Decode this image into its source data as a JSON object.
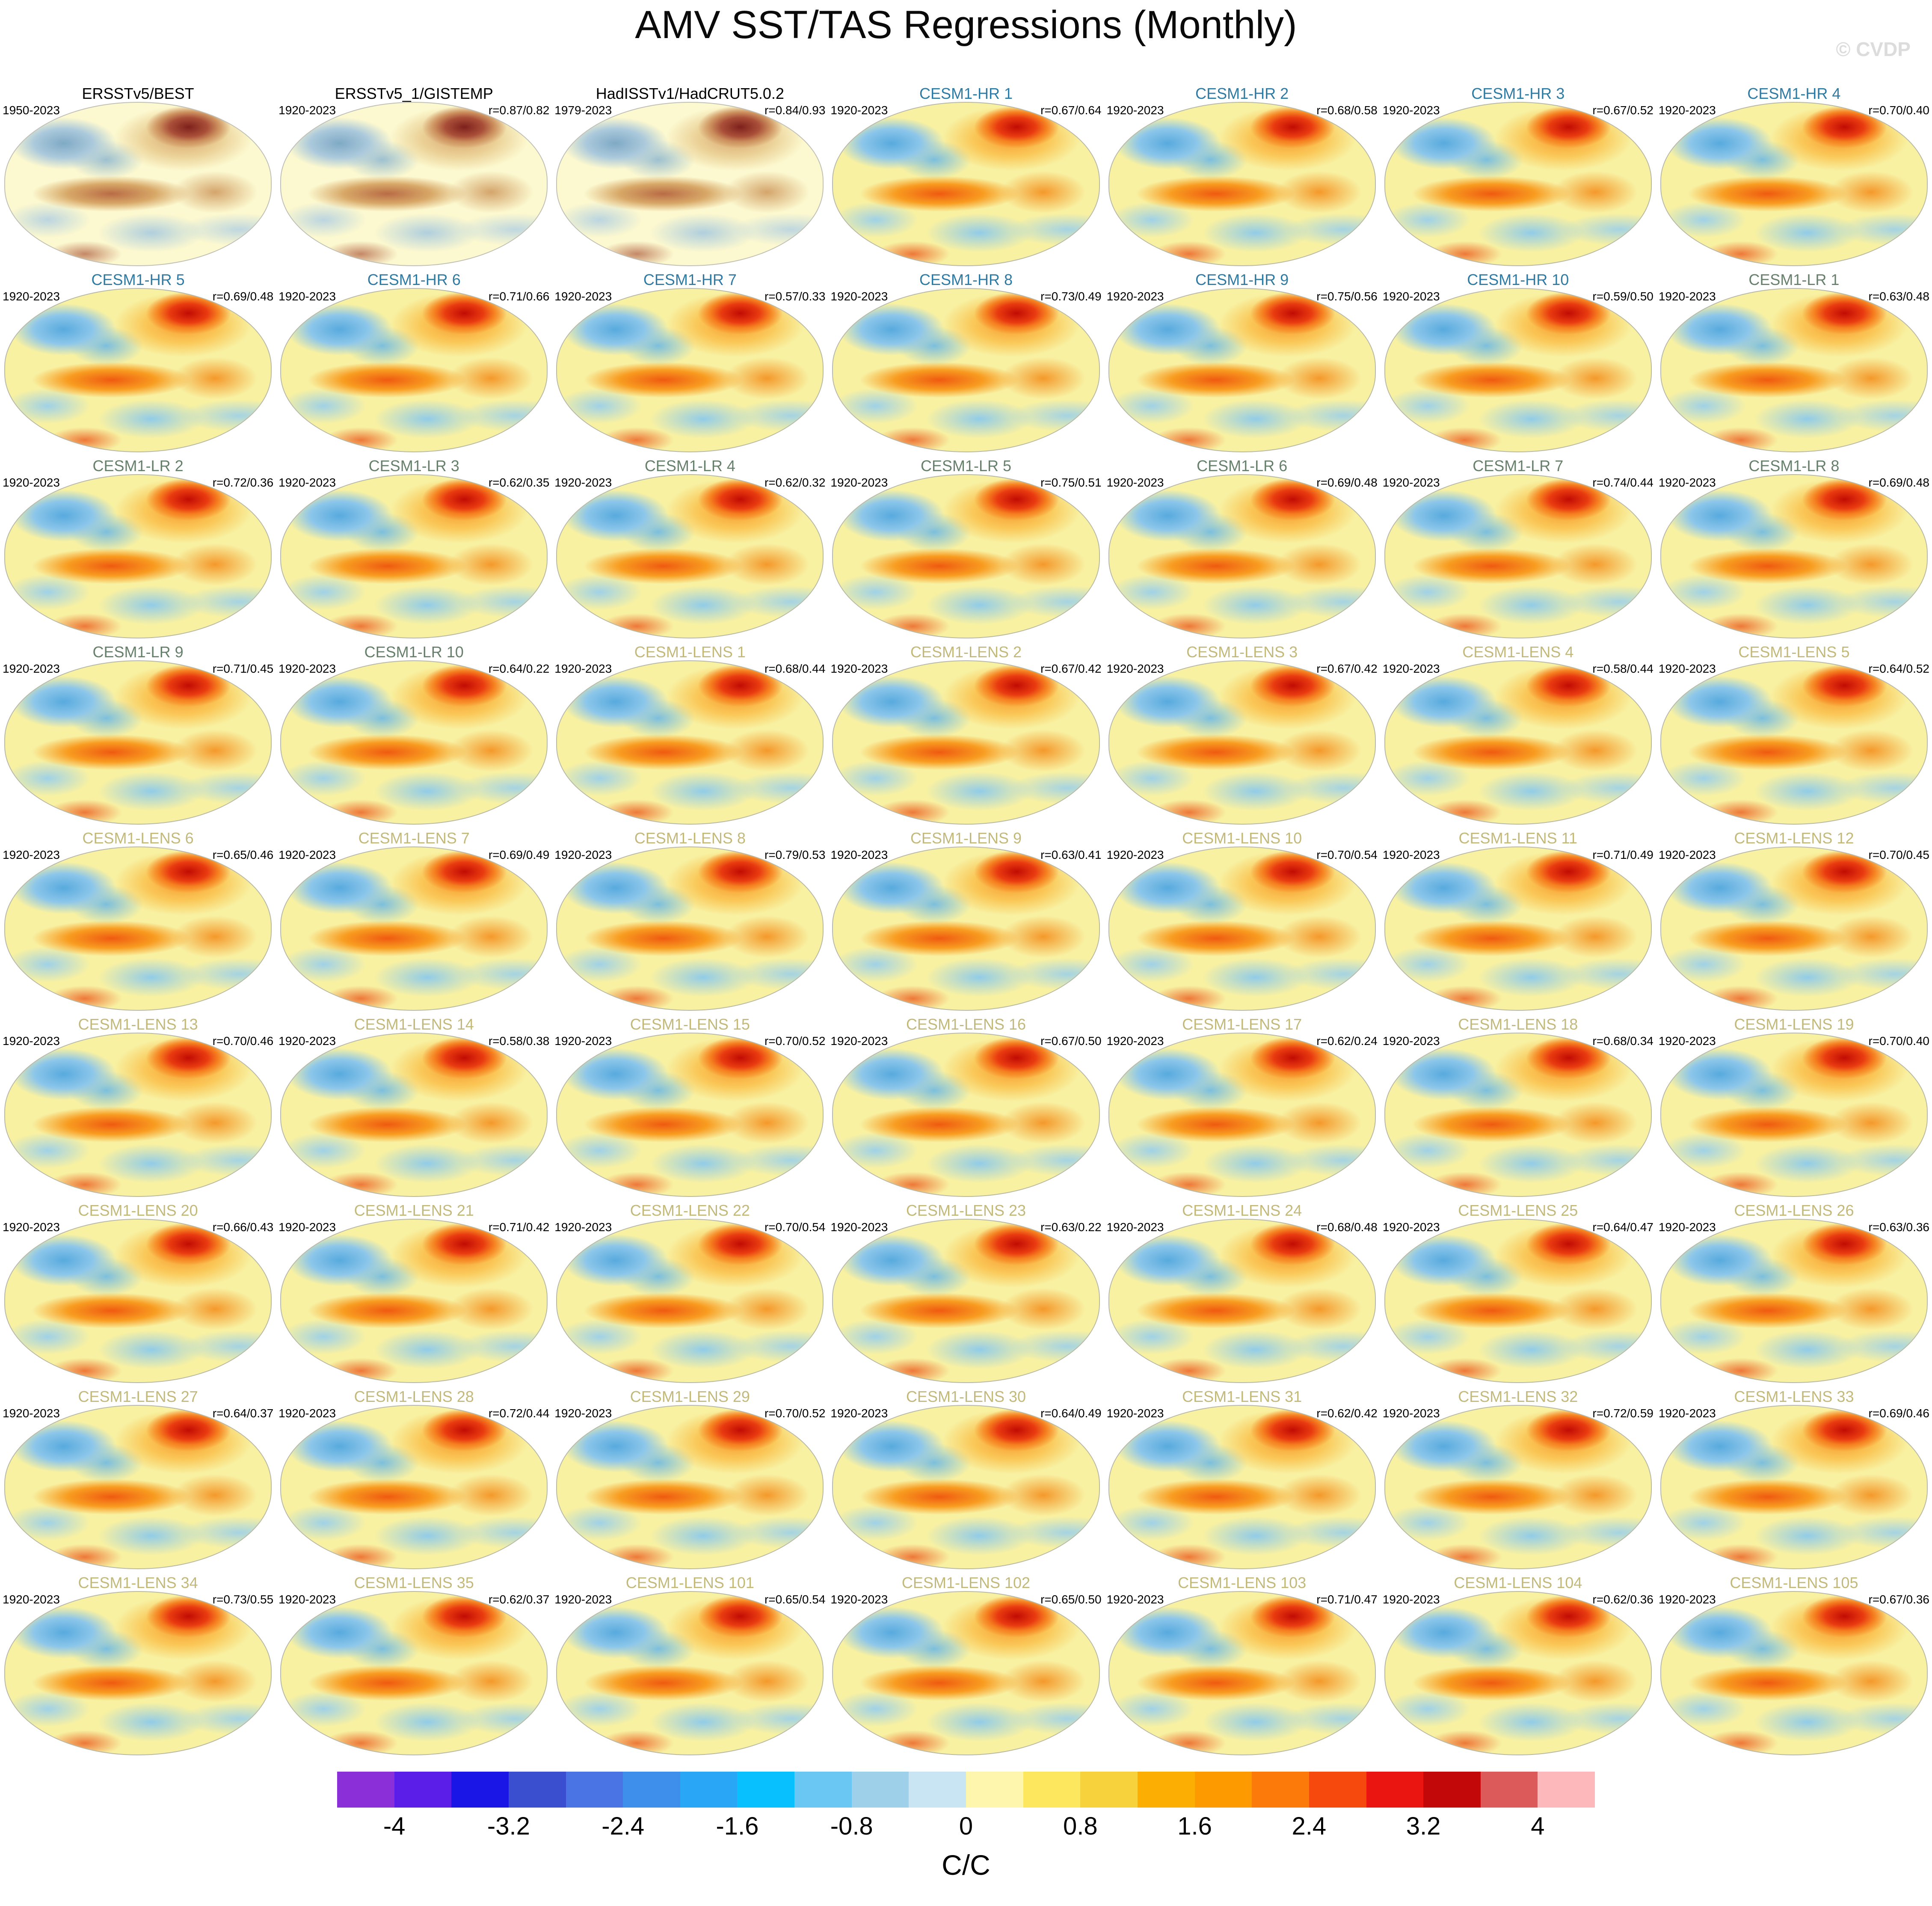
{
  "header": {
    "title": "AMV SST/TAS Regressions (Monthly)",
    "watermark": "© CVDP"
  },
  "colors": {
    "obs": "#000000",
    "hr": "#2f7ba3",
    "lr": "#66806b",
    "lens": "#c2b97a",
    "warm_accent": "#e93b10",
    "cool_accent": "#58aade",
    "map_base": "#f8f1a2"
  },
  "chart_data": {
    "type": "heatmap",
    "subtype": "global-map-grid",
    "title": "AMV SST/TAS Regressions (Monthly)",
    "grid": {
      "rows": 9,
      "cols": 7
    },
    "units": "C/C",
    "colorbar_range": [
      -4,
      4
    ],
    "colorbar_ticks": [
      "-4",
      "-3.2",
      "-2.4",
      "-1.6",
      "-0.8",
      "0",
      "0.8",
      "1.6",
      "2.4",
      "3.2",
      "4"
    ],
    "colorbar_colors": [
      "#8b2fd8",
      "#5a1ee8",
      "#1a16e6",
      "#3a4ed0",
      "#4a74e4",
      "#3e8eec",
      "#2aa6f6",
      "#08c0fe",
      "#6ac6f2",
      "#9ed0ea",
      "#c9e4f2",
      "#fdf6ac",
      "#fce75e",
      "#f8d23c",
      "#fcae02",
      "#fc9a00",
      "#fb7a0a",
      "#f5490e",
      "#ea1410",
      "#c20808",
      "#dc5a5a",
      "#fdb8bc"
    ],
    "pattern_summary": "Each panel: warm (positive) regression over North Atlantic, tropical Pacific and tropics; cool (negative) over North Pacific and parts of Southern Ocean.",
    "panels": [
      {
        "title": "ERSSTv5/BEST",
        "period": "1950-2023",
        "r": "",
        "group": "obs"
      },
      {
        "title": "ERSSTv5_1/GISTEMP",
        "period": "1920-2023",
        "r": "r=0.87/0.82",
        "group": "obs"
      },
      {
        "title": "HadISSTv1/HadCRUT5.0.2",
        "period": "1979-2023",
        "r": "r=0.84/0.93",
        "group": "obs"
      },
      {
        "title": "CESM1-HR 1",
        "period": "1920-2023",
        "r": "r=0.67/0.64",
        "group": "hr"
      },
      {
        "title": "CESM1-HR 2",
        "period": "1920-2023",
        "r": "r=0.68/0.58",
        "group": "hr"
      },
      {
        "title": "CESM1-HR 3",
        "period": "1920-2023",
        "r": "r=0.67/0.52",
        "group": "hr"
      },
      {
        "title": "CESM1-HR 4",
        "period": "1920-2023",
        "r": "r=0.70/0.40",
        "group": "hr"
      },
      {
        "title": "CESM1-HR 5",
        "period": "1920-2023",
        "r": "r=0.69/0.48",
        "group": "hr"
      },
      {
        "title": "CESM1-HR 6",
        "period": "1920-2023",
        "r": "r=0.71/0.66",
        "group": "hr"
      },
      {
        "title": "CESM1-HR 7",
        "period": "1920-2023",
        "r": "r=0.57/0.33",
        "group": "hr"
      },
      {
        "title": "CESM1-HR 8",
        "period": "1920-2023",
        "r": "r=0.73/0.49",
        "group": "hr"
      },
      {
        "title": "CESM1-HR 9",
        "period": "1920-2023",
        "r": "r=0.75/0.56",
        "group": "hr"
      },
      {
        "title": "CESM1-HR 10",
        "period": "1920-2023",
        "r": "r=0.59/0.50",
        "group": "hr"
      },
      {
        "title": "CESM1-LR 1",
        "period": "1920-2023",
        "r": "r=0.63/0.48",
        "group": "lr"
      },
      {
        "title": "CESM1-LR 2",
        "period": "1920-2023",
        "r": "r=0.72/0.36",
        "group": "lr"
      },
      {
        "title": "CESM1-LR 3",
        "period": "1920-2023",
        "r": "r=0.62/0.35",
        "group": "lr"
      },
      {
        "title": "CESM1-LR 4",
        "period": "1920-2023",
        "r": "r=0.62/0.32",
        "group": "lr"
      },
      {
        "title": "CESM1-LR 5",
        "period": "1920-2023",
        "r": "r=0.75/0.51",
        "group": "lr"
      },
      {
        "title": "CESM1-LR 6",
        "period": "1920-2023",
        "r": "r=0.69/0.48",
        "group": "lr"
      },
      {
        "title": "CESM1-LR 7",
        "period": "1920-2023",
        "r": "r=0.74/0.44",
        "group": "lr"
      },
      {
        "title": "CESM1-LR 8",
        "period": "1920-2023",
        "r": "r=0.69/0.48",
        "group": "lr"
      },
      {
        "title": "CESM1-LR 9",
        "period": "1920-2023",
        "r": "r=0.71/0.45",
        "group": "lr"
      },
      {
        "title": "CESM1-LR 10",
        "period": "1920-2023",
        "r": "r=0.64/0.22",
        "group": "lr"
      },
      {
        "title": "CESM1-LENS 1",
        "period": "1920-2023",
        "r": "r=0.68/0.44",
        "group": "lens"
      },
      {
        "title": "CESM1-LENS 2",
        "period": "1920-2023",
        "r": "r=0.67/0.42",
        "group": "lens"
      },
      {
        "title": "CESM1-LENS 3",
        "period": "1920-2023",
        "r": "r=0.67/0.42",
        "group": "lens"
      },
      {
        "title": "CESM1-LENS 4",
        "period": "1920-2023",
        "r": "r=0.58/0.44",
        "group": "lens"
      },
      {
        "title": "CESM1-LENS 5",
        "period": "1920-2023",
        "r": "r=0.64/0.52",
        "group": "lens"
      },
      {
        "title": "CESM1-LENS 6",
        "period": "1920-2023",
        "r": "r=0.65/0.46",
        "group": "lens"
      },
      {
        "title": "CESM1-LENS 7",
        "period": "1920-2023",
        "r": "r=0.69/0.49",
        "group": "lens"
      },
      {
        "title": "CESM1-LENS 8",
        "period": "1920-2023",
        "r": "r=0.79/0.53",
        "group": "lens"
      },
      {
        "title": "CESM1-LENS 9",
        "period": "1920-2023",
        "r": "r=0.63/0.41",
        "group": "lens"
      },
      {
        "title": "CESM1-LENS 10",
        "period": "1920-2023",
        "r": "r=0.70/0.54",
        "group": "lens"
      },
      {
        "title": "CESM1-LENS 11",
        "period": "1920-2023",
        "r": "r=0.71/0.49",
        "group": "lens"
      },
      {
        "title": "CESM1-LENS 12",
        "period": "1920-2023",
        "r": "r=0.70/0.45",
        "group": "lens"
      },
      {
        "title": "CESM1-LENS 13",
        "period": "1920-2023",
        "r": "r=0.70/0.46",
        "group": "lens"
      },
      {
        "title": "CESM1-LENS 14",
        "period": "1920-2023",
        "r": "r=0.58/0.38",
        "group": "lens"
      },
      {
        "title": "CESM1-LENS 15",
        "period": "1920-2023",
        "r": "r=0.70/0.52",
        "group": "lens"
      },
      {
        "title": "CESM1-LENS 16",
        "period": "1920-2023",
        "r": "r=0.67/0.50",
        "group": "lens"
      },
      {
        "title": "CESM1-LENS 17",
        "period": "1920-2023",
        "r": "r=0.62/0.24",
        "group": "lens"
      },
      {
        "title": "CESM1-LENS 18",
        "period": "1920-2023",
        "r": "r=0.68/0.34",
        "group": "lens"
      },
      {
        "title": "CESM1-LENS 19",
        "period": "1920-2023",
        "r": "r=0.70/0.40",
        "group": "lens"
      },
      {
        "title": "CESM1-LENS 20",
        "period": "1920-2023",
        "r": "r=0.66/0.43",
        "group": "lens"
      },
      {
        "title": "CESM1-LENS 21",
        "period": "1920-2023",
        "r": "r=0.71/0.42",
        "group": "lens"
      },
      {
        "title": "CESM1-LENS 22",
        "period": "1920-2023",
        "r": "r=0.70/0.54",
        "group": "lens"
      },
      {
        "title": "CESM1-LENS 23",
        "period": "1920-2023",
        "r": "r=0.63/0.22",
        "group": "lens"
      },
      {
        "title": "CESM1-LENS 24",
        "period": "1920-2023",
        "r": "r=0.68/0.48",
        "group": "lens"
      },
      {
        "title": "CESM1-LENS 25",
        "period": "1920-2023",
        "r": "r=0.64/0.47",
        "group": "lens"
      },
      {
        "title": "CESM1-LENS 26",
        "period": "1920-2023",
        "r": "r=0.63/0.36",
        "group": "lens"
      },
      {
        "title": "CESM1-LENS 27",
        "period": "1920-2023",
        "r": "r=0.64/0.37",
        "group": "lens"
      },
      {
        "title": "CESM1-LENS 28",
        "period": "1920-2023",
        "r": "r=0.72/0.44",
        "group": "lens"
      },
      {
        "title": "CESM1-LENS 29",
        "period": "1920-2023",
        "r": "r=0.70/0.52",
        "group": "lens"
      },
      {
        "title": "CESM1-LENS 30",
        "period": "1920-2023",
        "r": "r=0.64/0.49",
        "group": "lens"
      },
      {
        "title": "CESM1-LENS 31",
        "period": "1920-2023",
        "r": "r=0.62/0.42",
        "group": "lens"
      },
      {
        "title": "CESM1-LENS 32",
        "period": "1920-2023",
        "r": "r=0.72/0.59",
        "group": "lens"
      },
      {
        "title": "CESM1-LENS 33",
        "period": "1920-2023",
        "r": "r=0.69/0.46",
        "group": "lens"
      },
      {
        "title": "CESM1-LENS 34",
        "period": "1920-2023",
        "r": "r=0.73/0.55",
        "group": "lens"
      },
      {
        "title": "CESM1-LENS 35",
        "period": "1920-2023",
        "r": "r=0.62/0.37",
        "group": "lens"
      },
      {
        "title": "CESM1-LENS 101",
        "period": "1920-2023",
        "r": "r=0.65/0.54",
        "group": "lens"
      },
      {
        "title": "CESM1-LENS 102",
        "period": "1920-2023",
        "r": "r=0.65/0.50",
        "group": "lens"
      },
      {
        "title": "CESM1-LENS 103",
        "period": "1920-2023",
        "r": "r=0.71/0.47",
        "group": "lens"
      },
      {
        "title": "CESM1-LENS 104",
        "period": "1920-2023",
        "r": "r=0.62/0.36",
        "group": "lens"
      },
      {
        "title": "CESM1-LENS 105",
        "period": "1920-2023",
        "r": "r=0.67/0.36",
        "group": "lens"
      }
    ]
  }
}
